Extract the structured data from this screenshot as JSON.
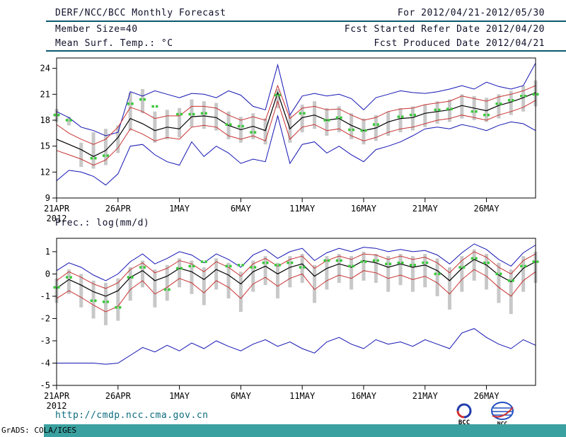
{
  "header": {
    "title": "DERF/NCC/BCC Monthly Forecast",
    "member_size": "Member Size=40",
    "temp_label": "Mean Surf. Temp.: °C",
    "for_range": "For 2012/04/21-2012/05/30",
    "fcst_started": "Fcst Started Refer Date 2012/04/20",
    "fcst_produced": "Fcst Produced Date 2012/04/21"
  },
  "footer": {
    "url": "http://cmdp.ncc.cma.gov.cn",
    "grads_credit": "GrADS: COLA/IGES",
    "logo_bcc": "BCC",
    "logo_ncc": "NCC"
  },
  "colors": {
    "rule": "#0a5a6e",
    "envelope": "#1414b4",
    "quartile": "#c83232",
    "mean": "#000000",
    "obs": "#3cc83c",
    "spread_bar": "#c8c8c8",
    "url_text": "#0b6b7f",
    "bottom_bar": "#3aa0a0"
  },
  "chart_data": [
    {
      "type": "line",
      "title": "Mean Surf. Temp.: °C",
      "ylabel": "°C",
      "ylim": [
        9,
        25.2
      ],
      "yticks": [
        9,
        12,
        15,
        18,
        21,
        24
      ],
      "x_tick_labels": [
        "21APR",
        "26APR",
        "1MAY",
        "6MAY",
        "11MAY",
        "16MAY",
        "21MAY",
        "26MAY"
      ],
      "x_tick_indices": [
        0,
        5,
        10,
        15,
        20,
        25,
        30,
        35
      ],
      "x_sub_label": "2012",
      "series": [
        {
          "name": "ensemble-max",
          "color": "#1414b4",
          "width": 1,
          "values": [
            19.0,
            18.3,
            17.2,
            16.8,
            16.2,
            16.6,
            21.3,
            20.8,
            21.4,
            21.0,
            20.6,
            21.1,
            21.0,
            20.6,
            21.4,
            20.9,
            19.6,
            19.2,
            24.4,
            18.6,
            20.8,
            21.1,
            20.8,
            21.0,
            20.5,
            19.2,
            20.6,
            21.0,
            21.4,
            21.2,
            21.1,
            21.3,
            21.6,
            22.0,
            21.6,
            22.4,
            21.9,
            21.6,
            22.0,
            24.6
          ]
        },
        {
          "name": "upper-quartile",
          "color": "#c83232",
          "width": 1,
          "values": [
            17.5,
            16.5,
            15.8,
            15.2,
            15.8,
            17.2,
            19.5,
            19.0,
            18.2,
            18.5,
            18.5,
            19.6,
            19.6,
            19.4,
            18.6,
            18.0,
            18.4,
            18.0,
            22.0,
            18.2,
            19.4,
            19.6,
            19.2,
            19.3,
            18.6,
            18.0,
            18.3,
            19.0,
            19.3,
            19.4,
            19.8,
            20.0,
            20.2,
            20.8,
            20.5,
            20.2,
            20.7,
            21.0,
            21.4,
            22.0
          ]
        },
        {
          "name": "ensemble-mean",
          "color": "#000000",
          "width": 1.2,
          "values": [
            15.8,
            15.2,
            14.6,
            13.8,
            14.5,
            16.0,
            18.2,
            17.6,
            16.8,
            17.2,
            17.0,
            18.4,
            18.5,
            18.3,
            17.4,
            16.9,
            17.3,
            16.8,
            21.2,
            17.0,
            18.3,
            18.6,
            18.0,
            18.2,
            17.4,
            16.8,
            17.1,
            17.8,
            18.2,
            18.3,
            18.8,
            19.0,
            19.2,
            19.7,
            19.4,
            19.1,
            19.7,
            20.1,
            20.6,
            21.2
          ]
        },
        {
          "name": "lower-quartile",
          "color": "#c83232",
          "width": 1,
          "values": [
            14.5,
            14.0,
            13.5,
            12.8,
            13.4,
            14.8,
            17.0,
            16.4,
            15.6,
            16.0,
            15.8,
            17.2,
            17.4,
            17.2,
            16.2,
            15.8,
            16.2,
            15.6,
            20.2,
            15.8,
            17.2,
            17.5,
            16.8,
            17.0,
            16.2,
            15.6,
            16.0,
            16.6,
            17.0,
            17.2,
            17.6,
            18.0,
            18.2,
            18.6,
            18.3,
            18.0,
            18.6,
            19.0,
            19.5,
            20.3
          ]
        },
        {
          "name": "ensemble-min",
          "color": "#1414b4",
          "width": 1,
          "values": [
            11.0,
            12.2,
            12.0,
            11.5,
            10.5,
            11.8,
            15.0,
            15.2,
            14.0,
            13.2,
            12.8,
            15.5,
            13.8,
            15.0,
            14.2,
            13.0,
            13.5,
            13.2,
            18.5,
            13.0,
            15.2,
            15.5,
            14.2,
            15.0,
            14.0,
            13.2,
            14.6,
            15.0,
            15.5,
            16.2,
            17.0,
            17.2,
            17.0,
            17.5,
            17.2,
            16.8,
            17.4,
            17.8,
            17.6,
            16.8
          ]
        }
      ],
      "bars": {
        "name": "ensemble-spread",
        "color": "#c8c8c8",
        "ranges": [
          [
            17.8,
            19.3
          ],
          [
            17.4,
            18.4
          ],
          [
            12.6,
            15.4
          ],
          [
            12.4,
            16.6
          ],
          [
            12.8,
            17.0
          ],
          [
            14.2,
            17.4
          ],
          [
            16.8,
            21.2
          ],
          [
            18.8,
            21.6
          ],
          [
            15.4,
            19.0
          ],
          [
            15.8,
            19.2
          ],
          [
            16.0,
            19.4
          ],
          [
            17.2,
            20.4
          ],
          [
            17.0,
            20.2
          ],
          [
            16.8,
            20.0
          ],
          [
            15.8,
            19.0
          ],
          [
            15.4,
            18.4
          ],
          [
            15.8,
            18.8
          ],
          [
            15.2,
            18.2
          ],
          [
            19.4,
            21.6
          ],
          [
            15.4,
            18.6
          ],
          [
            16.6,
            19.8
          ],
          [
            17.0,
            20.2
          ],
          [
            16.2,
            19.4
          ],
          [
            16.6,
            19.6
          ],
          [
            15.8,
            18.8
          ],
          [
            15.2,
            18.2
          ],
          [
            15.6,
            18.6
          ],
          [
            16.2,
            19.0
          ],
          [
            16.6,
            19.4
          ],
          [
            16.8,
            19.6
          ],
          [
            17.2,
            19.8
          ],
          [
            17.6,
            20.2
          ],
          [
            17.8,
            20.4
          ],
          [
            18.2,
            21.0
          ],
          [
            18.0,
            20.8
          ],
          [
            17.8,
            20.6
          ],
          [
            18.2,
            21.0
          ],
          [
            18.6,
            21.4
          ],
          [
            19.0,
            22.0
          ],
          [
            19.6,
            22.6
          ]
        ]
      },
      "obs": {
        "name": "observation-marks",
        "color": "#3cc83c",
        "values": [
          18.6,
          18.0,
          null,
          13.6,
          13.9,
          null,
          19.9,
          20.4,
          19.6,
          null,
          18.7,
          18.7,
          18.8,
          null,
          17.5,
          17.3,
          16.6,
          null,
          20.9,
          null,
          18.8,
          null,
          18.0,
          18.3,
          16.9,
          16.8,
          17.5,
          null,
          18.4,
          18.6,
          null,
          19.2,
          19.3,
          null,
          19.0,
          18.6,
          19.9,
          20.3,
          20.8,
          21.0
        ]
      }
    },
    {
      "type": "line",
      "title": "Prec.: log(mm/d)",
      "ylabel": "log(mm/d)",
      "ylim": [
        -5,
        1.6
      ],
      "yticks": [
        -5,
        -4,
        -3,
        -2,
        -1,
        0,
        1
      ],
      "x_tick_labels": [
        "21APR",
        "26APR",
        "1MAY",
        "6MAY",
        "11MAY",
        "16MAY",
        "21MAY",
        "26MAY"
      ],
      "x_tick_indices": [
        0,
        5,
        10,
        15,
        20,
        25,
        30,
        35
      ],
      "x_sub_label": "2012",
      "series": [
        {
          "name": "ensemble-max",
          "color": "#1414b4",
          "width": 1,
          "values": [
            0.15,
            0.5,
            0.3,
            -0.05,
            -0.3,
            0.0,
            0.55,
            0.9,
            0.45,
            0.7,
            1.0,
            0.85,
            0.5,
            0.9,
            0.65,
            0.3,
            0.85,
            1.1,
            0.7,
            1.0,
            1.15,
            0.6,
            0.95,
            1.15,
            1.0,
            1.2,
            1.15,
            1.0,
            1.1,
            1.0,
            1.05,
            0.85,
            0.45,
            0.95,
            1.35,
            1.1,
            0.65,
            0.35,
            0.95,
            1.3
          ]
        },
        {
          "name": "upper-quartile",
          "color": "#c83232",
          "width": 1,
          "values": [
            -0.3,
            0.1,
            -0.15,
            -0.45,
            -0.65,
            -0.4,
            0.2,
            0.5,
            0.05,
            0.25,
            0.6,
            0.45,
            0.1,
            0.55,
            0.3,
            -0.1,
            0.45,
            0.7,
            0.35,
            0.65,
            0.8,
            0.25,
            0.6,
            0.8,
            0.65,
            0.9,
            0.85,
            0.65,
            0.8,
            0.65,
            0.75,
            0.5,
            0.05,
            0.6,
            1.0,
            0.75,
            0.3,
            0.0,
            0.6,
            0.9
          ]
        },
        {
          "name": "ensemble-mean",
          "color": "#000000",
          "width": 1.2,
          "values": [
            -0.65,
            -0.25,
            -0.5,
            -0.8,
            -1.0,
            -0.75,
            -0.15,
            0.15,
            -0.3,
            -0.1,
            0.25,
            0.1,
            -0.25,
            0.2,
            -0.05,
            -0.45,
            0.1,
            0.35,
            0.0,
            0.3,
            0.45,
            -0.1,
            0.25,
            0.45,
            0.3,
            0.6,
            0.5,
            0.3,
            0.45,
            0.3,
            0.4,
            0.15,
            -0.3,
            0.25,
            0.65,
            0.4,
            -0.05,
            -0.35,
            0.25,
            0.55
          ]
        },
        {
          "name": "lower-quartile",
          "color": "#c83232",
          "width": 1,
          "values": [
            -1.1,
            -0.75,
            -1.05,
            -1.4,
            -1.7,
            -1.45,
            -0.7,
            -0.3,
            -0.9,
            -0.6,
            -0.2,
            -0.4,
            -0.85,
            -0.3,
            -0.6,
            -1.1,
            -0.45,
            -0.15,
            -0.55,
            -0.2,
            0.0,
            -0.7,
            -0.3,
            -0.05,
            -0.2,
            0.15,
            0.05,
            -0.2,
            -0.05,
            -0.25,
            -0.1,
            -0.4,
            -0.9,
            -0.25,
            0.2,
            -0.1,
            -0.6,
            -1.0,
            -0.3,
            0.1
          ]
        },
        {
          "name": "ensemble-min",
          "color": "#1414b4",
          "width": 1,
          "values": [
            -4.0,
            -4.0,
            -4.0,
            -4.0,
            -4.05,
            -4.0,
            -3.65,
            -3.3,
            -3.5,
            -3.2,
            -3.45,
            -3.1,
            -3.35,
            -3.0,
            -3.25,
            -3.45,
            -3.15,
            -2.95,
            -3.25,
            -3.05,
            -3.35,
            -3.55,
            -3.05,
            -2.85,
            -3.15,
            -3.35,
            -2.95,
            -3.15,
            -3.05,
            -3.25,
            -2.95,
            -3.15,
            -3.35,
            -2.65,
            -2.45,
            -2.85,
            -3.15,
            -3.35,
            -2.95,
            -3.2
          ]
        }
      ],
      "bars": {
        "name": "ensemble-spread",
        "color": "#c8c8c8",
        "ranges": [
          [
            -1.3,
            -0.2
          ],
          [
            -0.9,
            0.2
          ],
          [
            -1.5,
            0.0
          ],
          [
            -2.0,
            -0.3
          ],
          [
            -2.3,
            -0.4
          ],
          [
            -2.1,
            -0.2
          ],
          [
            -1.2,
            0.3
          ],
          [
            -0.6,
            0.6
          ],
          [
            -1.5,
            0.2
          ],
          [
            -1.2,
            0.4
          ],
          [
            -0.6,
            0.7
          ],
          [
            -0.9,
            0.6
          ],
          [
            -1.4,
            0.3
          ],
          [
            -0.7,
            0.7
          ],
          [
            -1.1,
            0.5
          ],
          [
            -1.7,
            0.1
          ],
          [
            -0.8,
            0.6
          ],
          [
            -0.5,
            0.8
          ],
          [
            -1.1,
            0.5
          ],
          [
            -0.6,
            0.8
          ],
          [
            -0.4,
            0.9
          ],
          [
            -1.3,
            0.4
          ],
          [
            -0.7,
            0.8
          ],
          [
            -0.4,
            0.9
          ],
          [
            -0.7,
            0.8
          ],
          [
            -0.3,
            1.0
          ],
          [
            -0.4,
            0.9
          ],
          [
            -0.8,
            0.8
          ],
          [
            -0.5,
            0.9
          ],
          [
            -0.8,
            0.8
          ],
          [
            -0.6,
            0.9
          ],
          [
            -1.0,
            0.7
          ],
          [
            -1.6,
            0.3
          ],
          [
            -0.8,
            0.8
          ],
          [
            -0.3,
            1.1
          ],
          [
            -0.7,
            0.9
          ],
          [
            -1.3,
            0.5
          ],
          [
            -1.8,
            0.2
          ],
          [
            -0.8,
            0.8
          ],
          [
            -0.4,
            1.0
          ]
        ]
      },
      "obs": {
        "name": "observation-marks",
        "color": "#3cc83c",
        "values": [
          -0.6,
          -0.15,
          null,
          -1.2,
          -1.25,
          -1.5,
          -0.15,
          0.3,
          null,
          -0.7,
          0.25,
          0.35,
          0.55,
          null,
          0.35,
          0.4,
          0.3,
          0.5,
          0.4,
          0.5,
          0.3,
          null,
          0.6,
          0.6,
          0.35,
          0.55,
          0.6,
          0.45,
          0.5,
          0.4,
          0.5,
          0.0,
          null,
          0.3,
          0.7,
          0.5,
          0.0,
          -0.3,
          0.35,
          0.55
        ]
      }
    }
  ]
}
